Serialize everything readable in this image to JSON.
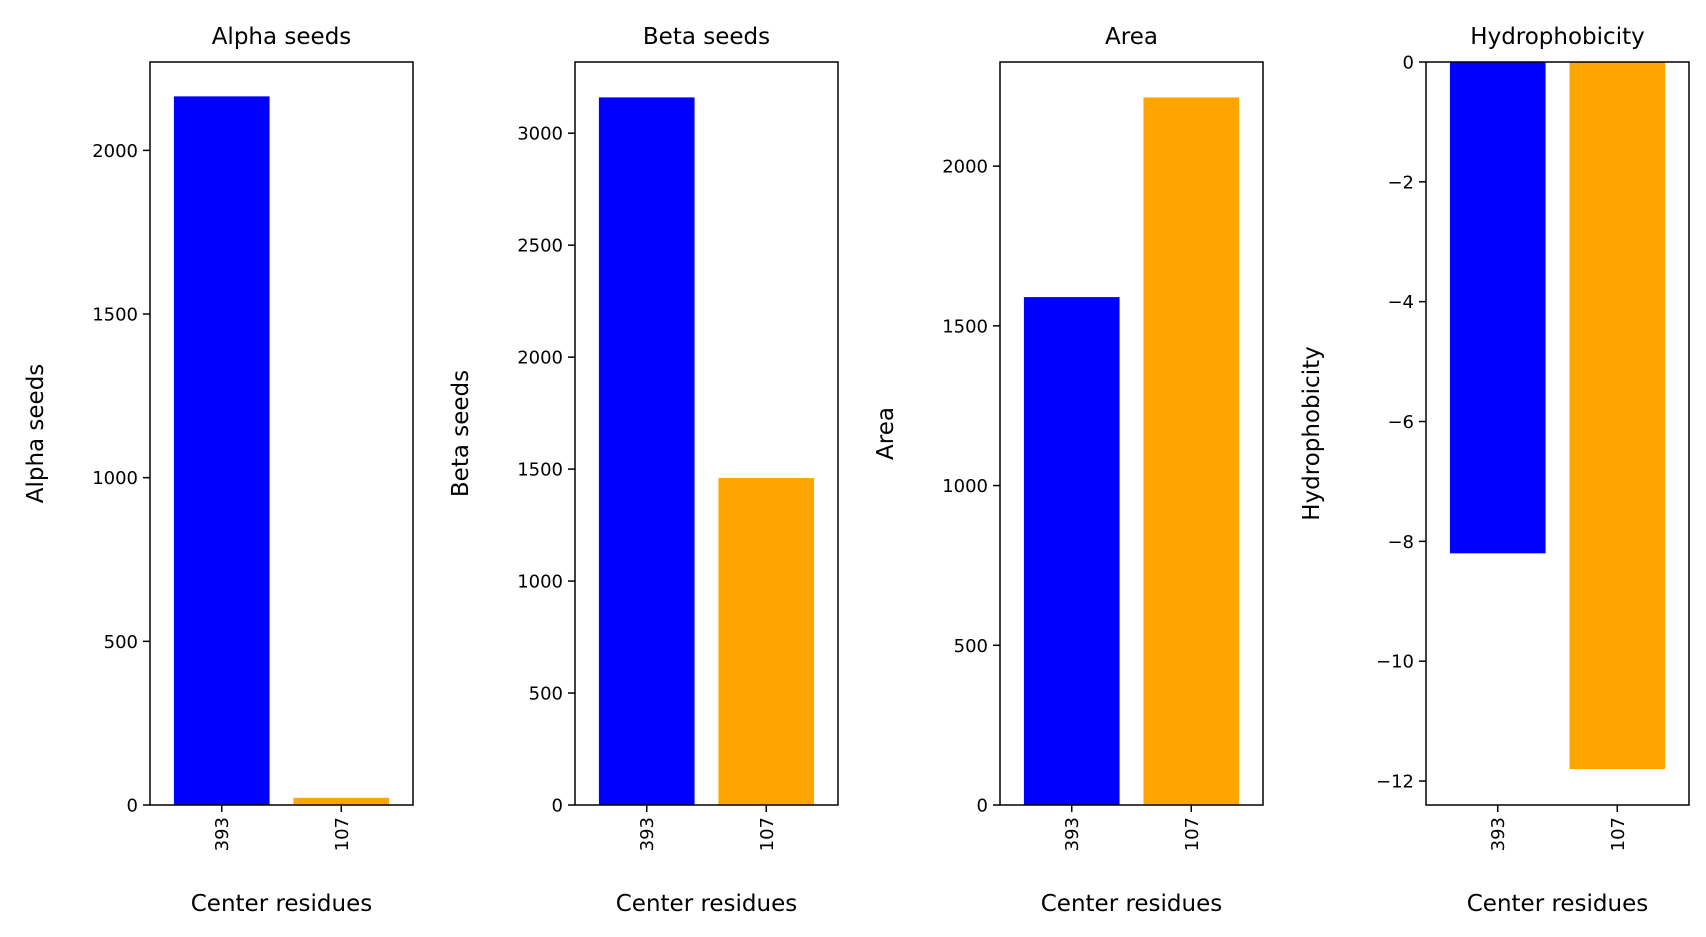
{
  "chart_data": [
    {
      "type": "bar",
      "title": "Alpha seeds",
      "xlabel": "Center residues",
      "ylabel": "Alpha seeds",
      "categories": [
        "393",
        "107"
      ],
      "values": [
        2165,
        22
      ],
      "colors": [
        "#0000ff",
        "#ffa500"
      ],
      "ylim": [
        0,
        2270
      ],
      "yticks": [
        0,
        500,
        1000,
        1500,
        2000
      ],
      "ytick_labels": [
        "0",
        "500",
        "1000",
        "1500",
        "2000"
      ],
      "grid": false
    },
    {
      "type": "bar",
      "title": "Beta seeds",
      "xlabel": "Center residues",
      "ylabel": "Beta seeds",
      "categories": [
        "393",
        "107"
      ],
      "values": [
        3160,
        1460
      ],
      "colors": [
        "#0000ff",
        "#ffa500"
      ],
      "ylim": [
        0,
        3318
      ],
      "yticks": [
        0,
        500,
        1000,
        1500,
        2000,
        2500,
        3000
      ],
      "ytick_labels": [
        "0",
        "500",
        "1000",
        "1500",
        "2000",
        "2500",
        "3000"
      ],
      "grid": false
    },
    {
      "type": "bar",
      "title": "Area",
      "xlabel": "Center residues",
      "ylabel": "Area",
      "categories": [
        "393",
        "107"
      ],
      "values": [
        1590,
        2215
      ],
      "colors": [
        "#0000ff",
        "#ffa500"
      ],
      "ylim": [
        0,
        2326
      ],
      "yticks": [
        0,
        500,
        1000,
        1500,
        2000
      ],
      "ytick_labels": [
        "0",
        "500",
        "1000",
        "1500",
        "2000"
      ],
      "grid": false
    },
    {
      "type": "bar",
      "title": "Hydrophobicity",
      "xlabel": "Center residues",
      "ylabel": "Hydrophobicity",
      "categories": [
        "393",
        "107"
      ],
      "values": [
        -8.2,
        -11.8
      ],
      "colors": [
        "#0000ff",
        "#ffa500"
      ],
      "ylim": [
        -12.4,
        0
      ],
      "yticks": [
        0,
        -2,
        -4,
        -6,
        -8,
        -10,
        -12
      ],
      "ytick_labels": [
        "0",
        "−2",
        "−4",
        "−6",
        "−8",
        "−10",
        "−12"
      ],
      "grid": false
    }
  ]
}
